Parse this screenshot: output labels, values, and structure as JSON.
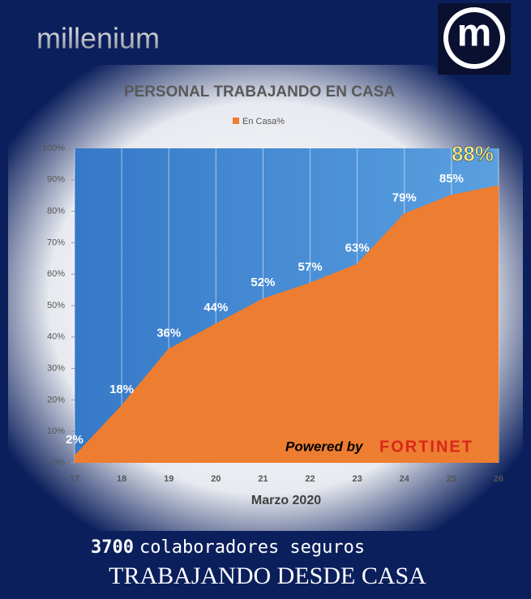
{
  "brand": {
    "name": "millenium",
    "logo": "m"
  },
  "chart_data": {
    "type": "area",
    "title": "PERSONAL TRABAJANDO EN CASA",
    "x_label": "Marzo 2020",
    "x": [
      17,
      18,
      19,
      20,
      21,
      22,
      23,
      24,
      25,
      26
    ],
    "xlim": [
      17,
      26
    ],
    "xticks": [
      17,
      18,
      19,
      20,
      21,
      22,
      23,
      24,
      25,
      26
    ],
    "ylim": [
      0,
      100
    ],
    "yticks": [
      {
        "value": 0,
        "label": "0%"
      },
      {
        "value": 10,
        "label": "10%"
      },
      {
        "value": 20,
        "label": "20%"
      },
      {
        "value": 30,
        "label": "30%"
      },
      {
        "value": 40,
        "label": "40%"
      },
      {
        "value": 50,
        "label": "50%"
      },
      {
        "value": 60,
        "label": "60%"
      },
      {
        "value": 70,
        "label": "70%"
      },
      {
        "value": 80,
        "label": "80%"
      },
      {
        "value": 90,
        "label": "90%"
      },
      {
        "value": 100,
        "label": "100%"
      }
    ],
    "grid": true,
    "series": [
      {
        "name": "En Casa%",
        "color": "#ed7d31",
        "values": [
          2,
          18,
          36,
          44,
          52,
          57,
          63,
          79,
          85,
          88
        ],
        "value_labels": [
          "2%",
          "18%",
          "36%",
          "44%",
          "52%",
          "57%",
          "63%",
          "79%",
          "85%",
          "88%"
        ]
      }
    ],
    "legend": "top"
  },
  "watermark": {
    "powered": "Powered by",
    "brand": "FORTINET"
  },
  "footer": {
    "count": "3700",
    "text": "colaboradores seguros",
    "headline": "TRABAJANDO DESDE CASA"
  }
}
